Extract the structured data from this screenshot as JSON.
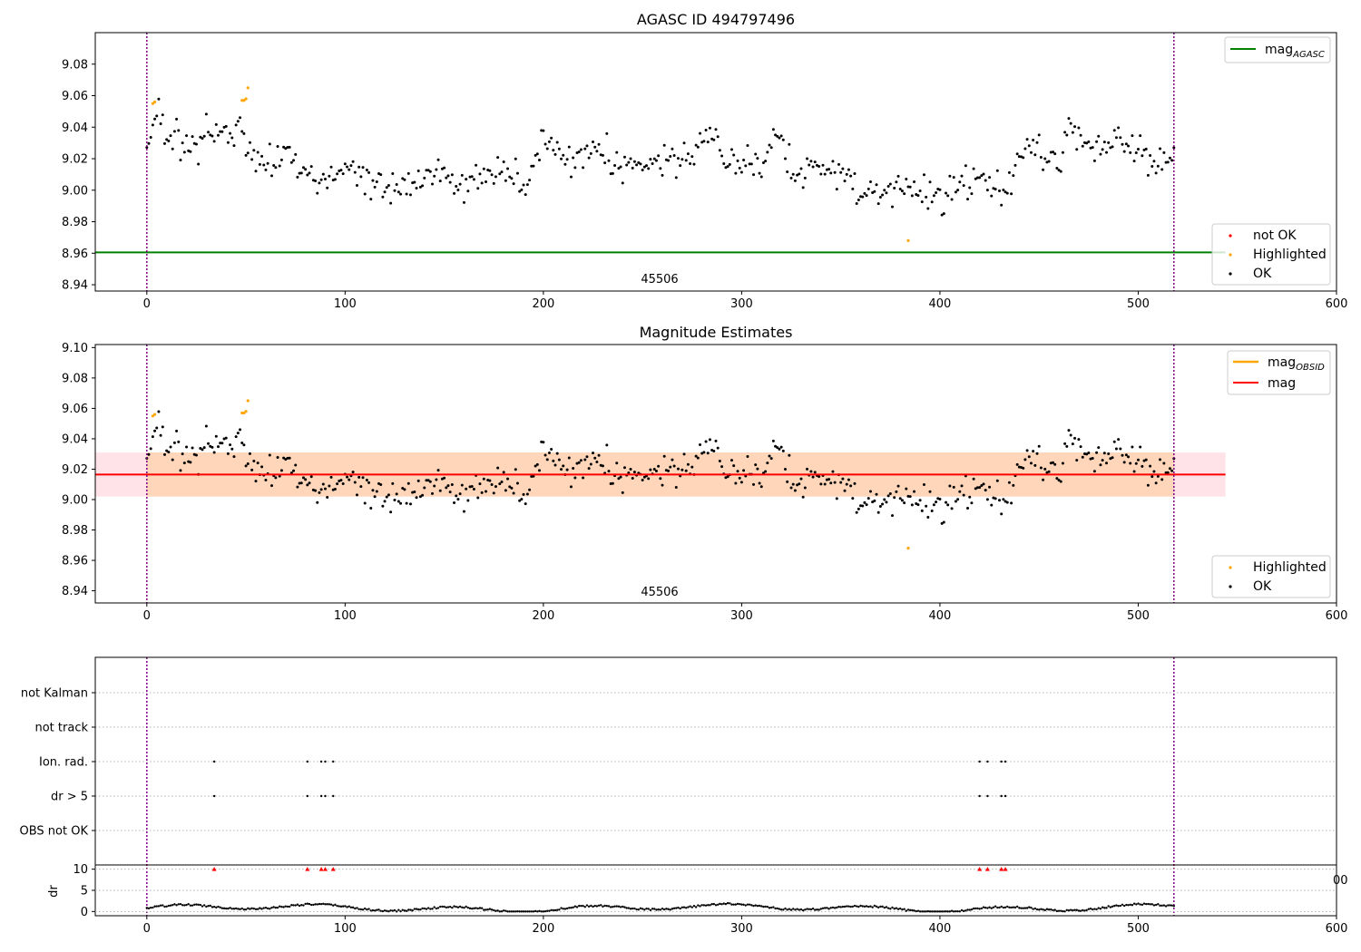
{
  "chart_data": [
    {
      "type": "scatter",
      "title": "AGASC ID 494797496",
      "xlim": [
        -26,
        600
      ],
      "ylim": [
        8.936,
        9.1
      ],
      "xticks": [
        "0",
        "100",
        "200",
        "300",
        "400",
        "500",
        "600"
      ],
      "yticks": [
        "8.94",
        "8.96",
        "8.98",
        "9.00",
        "9.02",
        "9.04",
        "9.06",
        "9.08"
      ],
      "obsid_label": "45506",
      "obsid_label_x": 259,
      "obsid_bounds": [
        0,
        518
      ],
      "line_legend": {
        "mag_agasc_base": "mag",
        "mag_agasc_sub": "AGASC"
      },
      "mag_agasc": 8.9605,
      "scatter_legend": [
        "not OK",
        "Highlighted",
        "OK"
      ],
      "highlighted_points": {
        "x": [
          3,
          4,
          48,
          49,
          50,
          51,
          384
        ],
        "y": [
          9.055,
          9.056,
          9.057,
          9.057,
          9.058,
          9.065,
          8.968
        ]
      },
      "series_trend": {
        "x": [
          0,
          5,
          10,
          15,
          20,
          25,
          30,
          35,
          40,
          45,
          50,
          55,
          60,
          70,
          80,
          90,
          100,
          110,
          120,
          130,
          140,
          150,
          160,
          170,
          180,
          190,
          195,
          200,
          210,
          220,
          230,
          240,
          250,
          260,
          270,
          280,
          285,
          290,
          300,
          310,
          320,
          325,
          330,
          340,
          350,
          360,
          370,
          380,
          390,
          400,
          410,
          420,
          430,
          435,
          440,
          450,
          460,
          465,
          470,
          480,
          490,
          500,
          510,
          518
        ],
        "y": [
          9.032,
          9.05,
          9.037,
          9.032,
          9.022,
          9.025,
          9.035,
          9.032,
          9.038,
          9.035,
          9.028,
          9.022,
          9.02,
          9.022,
          9.01,
          9.006,
          9.01,
          9.006,
          9.004,
          9.0,
          9.01,
          9.008,
          9.004,
          9.008,
          9.014,
          9.008,
          9.012,
          9.03,
          9.018,
          9.022,
          9.025,
          9.012,
          9.016,
          9.018,
          9.016,
          9.03,
          9.04,
          9.02,
          9.014,
          9.016,
          9.04,
          9.012,
          9.01,
          9.014,
          9.01,
          9.0,
          8.998,
          9.0,
          8.998,
          8.994,
          9.006,
          9.01,
          9.0,
          9.004,
          9.02,
          9.025,
          9.015,
          9.04,
          9.03,
          9.024,
          9.035,
          9.022,
          9.02,
          9.025
        ]
      }
    },
    {
      "type": "scatter",
      "title": "Magnitude Estimates",
      "xlim": [
        -26,
        600
      ],
      "ylim": [
        8.932,
        9.102
      ],
      "xticks": [
        "0",
        "100",
        "200",
        "300",
        "400",
        "500",
        "600"
      ],
      "yticks": [
        "8.94",
        "8.96",
        "8.98",
        "9.00",
        "9.02",
        "9.04",
        "9.06",
        "9.08",
        "9.10"
      ],
      "obsid_label": "45506",
      "mag": 9.0165,
      "mag_band": [
        9.002,
        9.031
      ],
      "band_xlim": [
        -26,
        544
      ],
      "line_legend": {
        "mag_obsid_base": "mag",
        "mag_obsid_sub": "OBSID",
        "mag": "mag"
      },
      "scatter_legend": [
        "Highlighted",
        "OK"
      ]
    },
    {
      "type": "scatter",
      "categories": [
        "not Kalman",
        "not track",
        "Ion. rad.",
        "dr > 5",
        "OBS not OK"
      ],
      "flag_points": {
        "Ion. rad.": [
          34,
          81,
          88,
          90,
          94,
          420,
          424,
          431,
          433
        ],
        "dr > 5": [
          34,
          81,
          88,
          90,
          94,
          420,
          424,
          431,
          433
        ]
      },
      "dr_panel": {
        "ylabel": "dr",
        "yticks": [
          "0",
          "5",
          "10"
        ],
        "ylim": [
          -1,
          11
        ],
        "xticks": [
          "0",
          "100",
          "200",
          "300",
          "400",
          "500",
          "600"
        ],
        "clipped_tick_fragment": "00",
        "flag_markers_x": [
          34,
          81,
          88,
          90,
          94,
          420,
          424,
          431,
          433
        ]
      }
    }
  ]
}
